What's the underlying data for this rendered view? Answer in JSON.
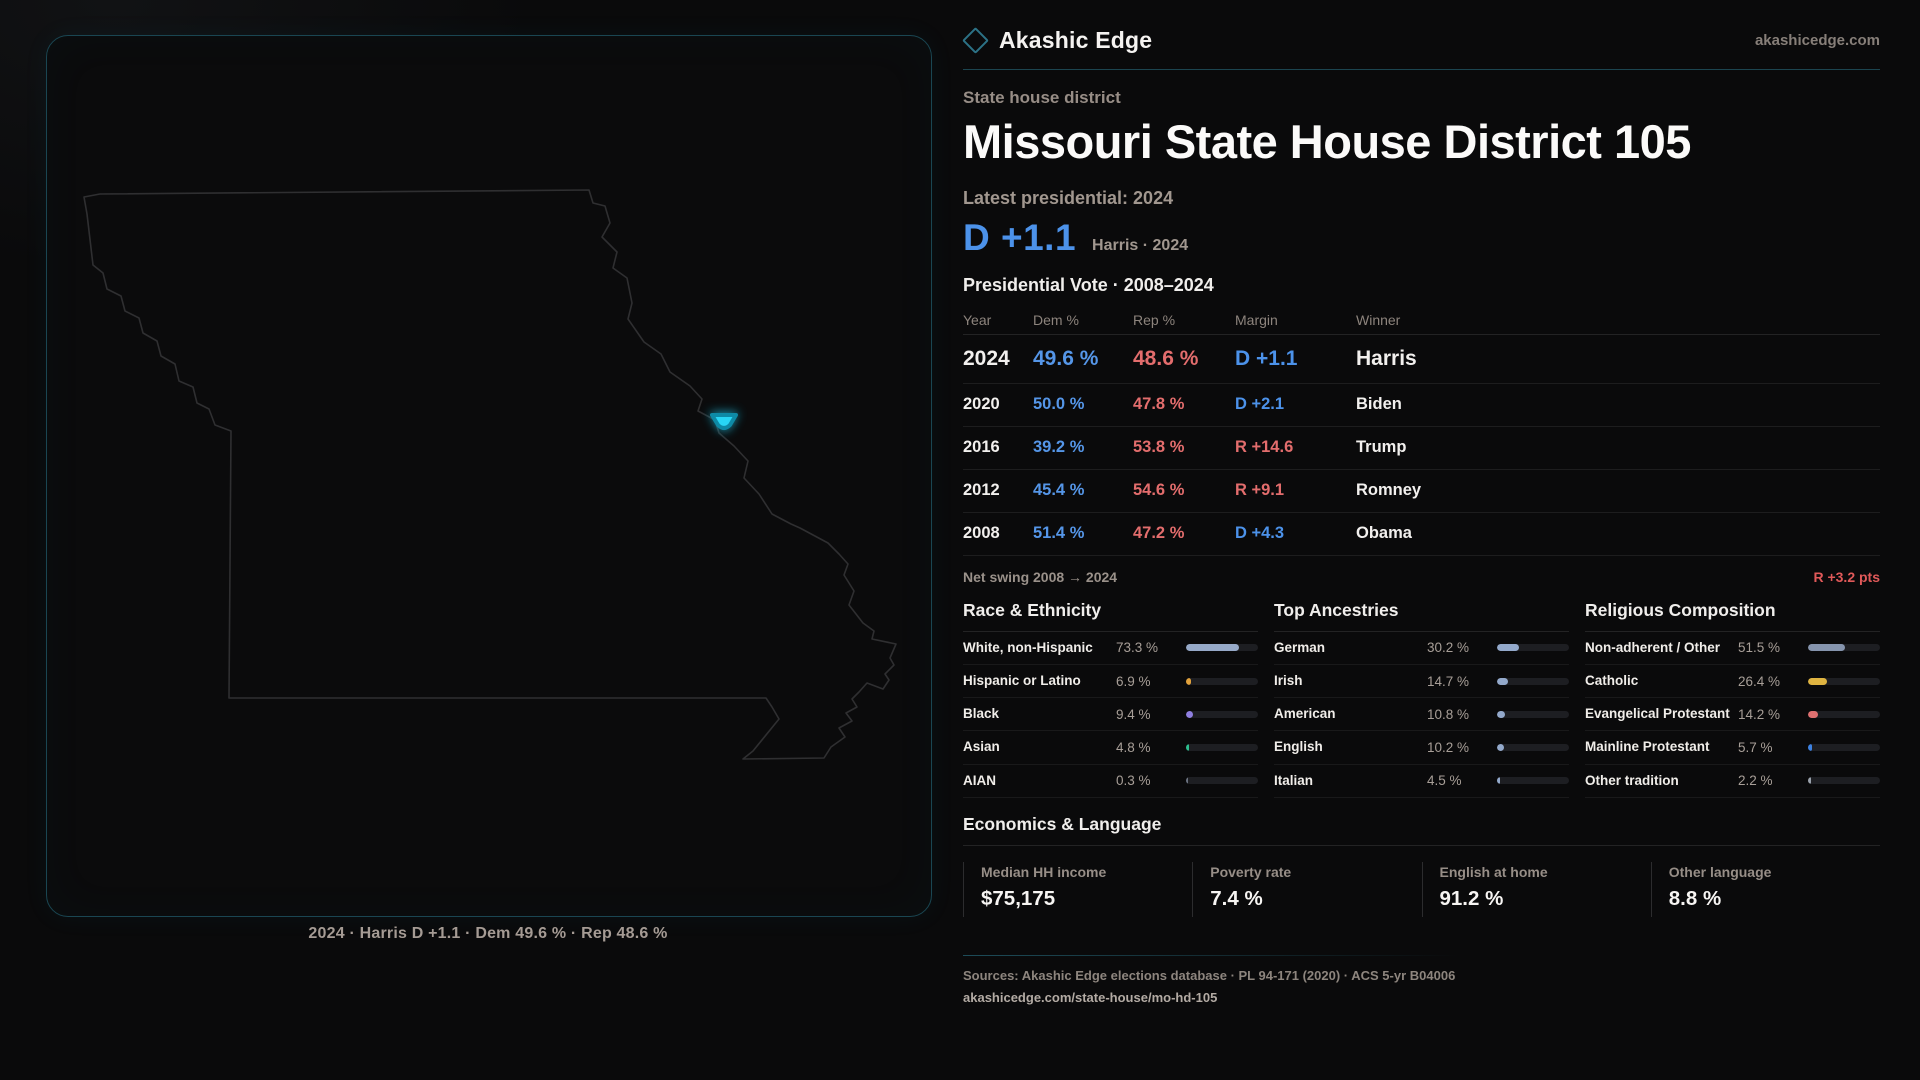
{
  "brand": {
    "name": "Akashic Edge",
    "domain": "akashicedge.com"
  },
  "page": {
    "kicker": "State house district",
    "title": "Missouri State House District 105",
    "latest_label": "Latest presidential: 2024",
    "headline_margin": "D +1.1",
    "headline_note": "Harris · 2024"
  },
  "map": {
    "caption": "2024 · Harris D +1.1 · Dem 49.6 % · Rep 48.6 %",
    "marker_color": "#28d6f5",
    "outline_color": "#2f2f31"
  },
  "vote_table": {
    "title": "Presidential Vote · 2008–2024",
    "columns": [
      "Year",
      "Dem %",
      "Rep %",
      "Margin",
      "Winner"
    ],
    "rows": [
      {
        "year": "2024",
        "dem": "49.6 %",
        "rep": "48.6 %",
        "margin": "D +1.1",
        "margin_party": "D",
        "winner": "Harris",
        "highlight": true
      },
      {
        "year": "2020",
        "dem": "50.0 %",
        "rep": "47.8 %",
        "margin": "D +2.1",
        "margin_party": "D",
        "winner": "Biden",
        "highlight": false
      },
      {
        "year": "2016",
        "dem": "39.2 %",
        "rep": "53.8 %",
        "margin": "R +14.6",
        "margin_party": "R",
        "winner": "Trump",
        "highlight": false
      },
      {
        "year": "2012",
        "dem": "45.4 %",
        "rep": "54.6 %",
        "margin": "R +9.1",
        "margin_party": "R",
        "winner": "Romney",
        "highlight": false
      },
      {
        "year": "2008",
        "dem": "51.4 %",
        "rep": "47.2 %",
        "margin": "D +4.3",
        "margin_party": "D",
        "winner": "Obama",
        "highlight": false
      }
    ],
    "net_swing_label": "Net swing 2008 → 2024",
    "net_swing_value": "R +3.2 pts"
  },
  "demographics": {
    "sections": [
      {
        "title": "Race & Ethnicity",
        "rows": [
          {
            "label": "White, non-Hispanic",
            "value": "73.3 %",
            "pct": 73.3,
            "color": "#96a9c8"
          },
          {
            "label": "Hispanic or Latino",
            "value": "6.9 %",
            "pct": 6.9,
            "color": "#e2a23c"
          },
          {
            "label": "Black",
            "value": "9.4 %",
            "pct": 9.4,
            "color": "#8f7fe0"
          },
          {
            "label": "Asian",
            "value": "4.8 %",
            "pct": 4.8,
            "color": "#2dbd8e"
          },
          {
            "label": "AIAN",
            "value": "0.3 %",
            "pct": 0.3,
            "color": "#6b7280"
          }
        ]
      },
      {
        "title": "Top Ancestries",
        "rows": [
          {
            "label": "German",
            "value": "30.2 %",
            "pct": 30.2,
            "color": "#93a9cb"
          },
          {
            "label": "Irish",
            "value": "14.7 %",
            "pct": 14.7,
            "color": "#93a9cb"
          },
          {
            "label": "American",
            "value": "10.8 %",
            "pct": 10.8,
            "color": "#93a9cb"
          },
          {
            "label": "English",
            "value": "10.2 %",
            "pct": 10.2,
            "color": "#93a9cb"
          },
          {
            "label": "Italian",
            "value": "4.5 %",
            "pct": 4.5,
            "color": "#93a9cb"
          }
        ]
      },
      {
        "title": "Religious Composition",
        "rows": [
          {
            "label": "Non-adherent / Other",
            "value": "51.5 %",
            "pct": 51.5,
            "color": "#8594ad"
          },
          {
            "label": "Catholic",
            "value": "26.4 %",
            "pct": 26.4,
            "color": "#dfb441"
          },
          {
            "label": "Evangelical Protestant",
            "value": "14.2 %",
            "pct": 14.2,
            "color": "#df7070"
          },
          {
            "label": "Mainline Protestant",
            "value": "5.7 %",
            "pct": 5.7,
            "color": "#3d82e2"
          },
          {
            "label": "Other tradition",
            "value": "2.2 %",
            "pct": 2.2,
            "color": "#9aa2ac"
          }
        ]
      }
    ]
  },
  "economics": {
    "title": "Economics & Language",
    "stats": [
      {
        "label": "Median HH income",
        "value": "$75,175"
      },
      {
        "label": "Poverty rate",
        "value": "7.4 %"
      },
      {
        "label": "English at home",
        "value": "91.2 %"
      },
      {
        "label": "Other language",
        "value": "8.8 %"
      }
    ]
  },
  "footer": {
    "sources": "Sources: Akashic Edge elections database · PL 94-171 (2020) · ACS 5-yr B04006",
    "url": "akashicedge.com/state-house/mo-hd-105"
  }
}
